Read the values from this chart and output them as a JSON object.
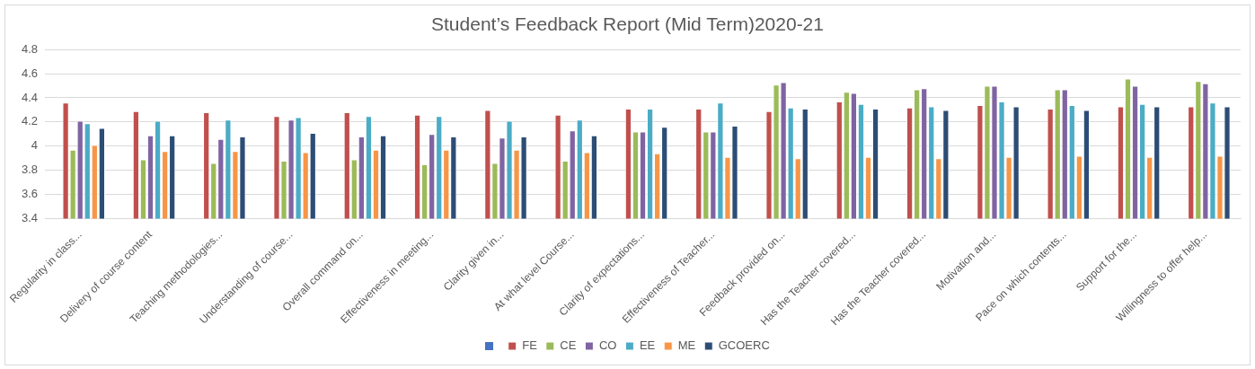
{
  "chart_data": {
    "type": "bar",
    "title": "Student’s Feedback Report (Mid Term)2020-21",
    "categories": [
      "Regularity in class...",
      "Delivery of course content",
      "Teaching methodologies...",
      "Understanding of course...",
      "Overall command on...",
      "Effectiveness in meeting...",
      "Clarity given in...",
      "At what level Course...",
      "Clarity of expectations...",
      "Effectiveness of Teacher...",
      "Feedback provided on...",
      "Has the Teacher covered...",
      "Has the Teacher covered...",
      "Motivation and...",
      "Pace on which contents...",
      "Support for the...",
      "Willingness to offer help..."
    ],
    "series": [
      {
        "color": "#4472c4",
        "values": [
          null,
          null,
          null,
          null,
          null,
          null,
          null,
          null,
          null,
          null,
          null,
          null,
          null,
          null,
          null,
          null,
          null
        ]
      },
      {
        "name": "FE",
        "color": "#c0504d",
        "values": [
          4.36,
          4.29,
          4.28,
          4.25,
          4.28,
          4.26,
          4.3,
          4.26,
          4.31,
          4.31,
          4.29,
          4.37,
          4.32,
          4.34,
          4.31,
          4.33,
          4.33
        ]
      },
      {
        "name": "CE",
        "color": "#9bbb59",
        "values": [
          3.97,
          3.89,
          3.86,
          3.88,
          3.89,
          3.85,
          3.86,
          3.88,
          4.12,
          4.12,
          4.51,
          4.45,
          4.47,
          4.5,
          4.47,
          4.56,
          4.54
        ]
      },
      {
        "name": "CO",
        "color": "#8064a2",
        "values": [
          4.21,
          4.09,
          4.06,
          4.22,
          4.08,
          4.1,
          4.07,
          4.13,
          4.12,
          4.12,
          4.53,
          4.44,
          4.48,
          4.5,
          4.47,
          4.5,
          4.52
        ]
      },
      {
        "name": "EE",
        "color": "#4bacc6",
        "values": [
          4.19,
          4.21,
          4.22,
          4.24,
          4.25,
          4.25,
          4.21,
          4.22,
          4.31,
          4.36,
          4.32,
          4.35,
          4.33,
          4.37,
          4.34,
          4.35,
          4.36
        ]
      },
      {
        "name": "ME",
        "color": "#f79646",
        "values": [
          4.01,
          3.96,
          3.96,
          3.95,
          3.97,
          3.97,
          3.97,
          3.95,
          3.94,
          3.91,
          3.9,
          3.91,
          3.9,
          3.91,
          3.92,
          3.91,
          3.92
        ]
      },
      {
        "name": "GCOERC",
        "color": "#2c4d75",
        "values": [
          4.15,
          4.09,
          4.08,
          4.11,
          4.09,
          4.08,
          4.08,
          4.09,
          4.16,
          4.17,
          4.31,
          4.31,
          4.3,
          4.33,
          4.3,
          4.33,
          4.33
        ]
      }
    ],
    "ylim": [
      3.4,
      4.8
    ],
    "yticks": [
      3.4,
      3.6,
      3.8,
      4,
      4.2,
      4.4,
      4.6,
      4.8
    ],
    "grid": "y",
    "legend": "bottom"
  }
}
